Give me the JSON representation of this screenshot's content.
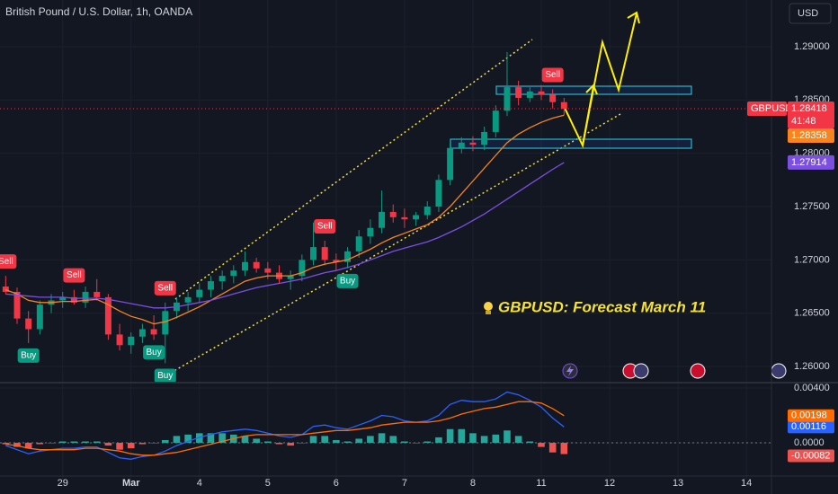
{
  "header": {
    "title": "British Pound / U.S. Dollar, 1h, OANDA",
    "currency": "USD",
    "symbol": "GBPUSD",
    "countdown": "41:48"
  },
  "annotation": "GBPUSD: Forecast March 11",
  "chart_data": [
    {
      "type": "candlestick",
      "x": [
        -5,
        -4,
        -3,
        -2,
        -1,
        0,
        1,
        2,
        3,
        4,
        5,
        6,
        7,
        8,
        9,
        10,
        11,
        12,
        13,
        14,
        15,
        16,
        17,
        18,
        19,
        20,
        21,
        22,
        23,
        24,
        25,
        26,
        27,
        28,
        29,
        30,
        31,
        32,
        33,
        34,
        35,
        36,
        37,
        38,
        39,
        40,
        41,
        42,
        43,
        44
      ],
      "open": [
        1.2675,
        1.267,
        1.2645,
        1.2635,
        1.2658,
        1.2662,
        1.2665,
        1.266,
        1.267,
        1.2665,
        1.263,
        1.262,
        1.2628,
        1.2635,
        1.263,
        1.2652,
        1.266,
        1.2665,
        1.2672,
        1.268,
        1.2685,
        1.269,
        1.2698,
        1.2692,
        1.2688,
        1.2682,
        1.2685,
        1.27,
        1.2712,
        1.27,
        1.2698,
        1.2708,
        1.2722,
        1.273,
        1.2745,
        1.274,
        1.2738,
        1.2742,
        1.275,
        1.2775,
        1.2805,
        1.281,
        1.2808,
        1.282,
        1.284,
        1.2862,
        1.2852,
        1.2858,
        1.2855,
        1.2848
      ],
      "high": [
        1.2685,
        1.2674,
        1.2652,
        1.2662,
        1.2668,
        1.267,
        1.2672,
        1.2675,
        1.2682,
        1.2668,
        1.264,
        1.2632,
        1.264,
        1.2648,
        1.266,
        1.2665,
        1.267,
        1.2678,
        1.2685,
        1.269,
        1.2695,
        1.2708,
        1.2702,
        1.2698,
        1.2695,
        1.269,
        1.2705,
        1.2735,
        1.2718,
        1.2706,
        1.2712,
        1.2728,
        1.2738,
        1.2765,
        1.2752,
        1.2748,
        1.2745,
        1.2755,
        1.278,
        1.281,
        1.2815,
        1.2816,
        1.2825,
        1.2845,
        1.2895,
        1.2868,
        1.2862,
        1.2864,
        1.286,
        1.2852
      ],
      "low": [
        1.2668,
        1.264,
        1.2622,
        1.263,
        1.265,
        1.2655,
        1.2658,
        1.2655,
        1.2662,
        1.2625,
        1.2615,
        1.2612,
        1.2622,
        1.2625,
        1.2603,
        1.2645,
        1.2652,
        1.266,
        1.2665,
        1.2672,
        1.2678,
        1.2685,
        1.2688,
        1.2682,
        1.2678,
        1.2672,
        1.268,
        1.2695,
        1.2695,
        1.269,
        1.2692,
        1.2702,
        1.2715,
        1.2725,
        1.2735,
        1.273,
        1.2732,
        1.2738,
        1.2745,
        1.277,
        1.28,
        1.2802,
        1.2803,
        1.2815,
        1.2835,
        1.2845,
        1.2848,
        1.285,
        1.2842,
        1.2836
      ],
      "close": [
        1.267,
        1.2645,
        1.2635,
        1.2658,
        1.2662,
        1.2665,
        1.266,
        1.267,
        1.2665,
        1.263,
        1.262,
        1.2628,
        1.2635,
        1.263,
        1.2652,
        1.266,
        1.2665,
        1.2672,
        1.268,
        1.2685,
        1.269,
        1.2698,
        1.2692,
        1.2688,
        1.2682,
        1.2685,
        1.27,
        1.2712,
        1.27,
        1.2698,
        1.2708,
        1.2722,
        1.273,
        1.2745,
        1.274,
        1.2738,
        1.2742,
        1.275,
        1.2775,
        1.2805,
        1.281,
        1.2808,
        1.282,
        1.284,
        1.2862,
        1.2852,
        1.2858,
        1.2855,
        1.2848,
        1.28418
      ],
      "up_color": "#089981",
      "down_color": "#f23645",
      "series": [
        {
          "color": "#f7841f",
          "values": [
            1.2672,
            1.2668,
            1.2662,
            1.266,
            1.266,
            1.2661,
            1.2661,
            1.2662,
            1.2663,
            1.2658,
            1.2652,
            1.2647,
            1.2644,
            1.264,
            1.2642,
            1.2646,
            1.2651,
            1.2656,
            1.2662,
            1.2668,
            1.2674,
            1.268,
            1.2683,
            1.2685,
            1.2685,
            1.2685,
            1.2688,
            1.2693,
            1.2696,
            1.2698,
            1.27,
            1.2705,
            1.271,
            1.2716,
            1.2721,
            1.2725,
            1.2729,
            1.2733,
            1.274,
            1.275,
            1.2762,
            1.2774,
            1.2786,
            1.2798,
            1.281,
            1.2818,
            1.2824,
            1.2829,
            1.2833,
            1.28358
          ]
        },
        {
          "color": "#7b4fe0",
          "values": [
            1.2668,
            1.2667,
            1.2666,
            1.2665,
            1.2665,
            1.2665,
            1.2664,
            1.2664,
            1.2664,
            1.2663,
            1.2661,
            1.2659,
            1.2657,
            1.2655,
            1.2655,
            1.2656,
            1.2658,
            1.266,
            1.2662,
            1.2665,
            1.2668,
            1.2671,
            1.2674,
            1.2676,
            1.2678,
            1.268,
            1.2682,
            1.2685,
            1.2688,
            1.269,
            1.2693,
            1.2696,
            1.27,
            1.2704,
            1.2708,
            1.2711,
            1.2714,
            1.2717,
            1.2721,
            1.2726,
            1.2731,
            1.2737,
            1.2743,
            1.275,
            1.2757,
            1.2764,
            1.2771,
            1.2778,
            1.2785,
            1.27914
          ]
        }
      ],
      "last_price_color": "#f23645",
      "signals": [
        {
          "label": "Sell",
          "x": -5,
          "color": "#f23645"
        },
        {
          "label": "Buy",
          "x": -3,
          "color": "#089981"
        },
        {
          "label": "Sell",
          "x": 1,
          "color": "#f23645"
        },
        {
          "label": "Sell",
          "x": 9,
          "color": "#f23645"
        },
        {
          "label": "Buy",
          "x": 8,
          "color": "#089981"
        },
        {
          "label": "Buy",
          "x": 9,
          "color": "#089981"
        },
        {
          "label": "Sell",
          "x": 23,
          "color": "#f23645"
        },
        {
          "label": "Buy",
          "x": 25,
          "color": "#089981"
        },
        {
          "label": "Sell",
          "x": 43,
          "color": "#f23645"
        }
      ],
      "xlim": [
        -5.5,
        62.2
      ],
      "xticks": [
        {
          "value": 0,
          "label": "29"
        },
        {
          "value": 6,
          "label": "Mar"
        },
        {
          "value": 12,
          "label": "4"
        },
        {
          "value": 18,
          "label": "5"
        },
        {
          "value": 24,
          "label": "6"
        },
        {
          "value": 30,
          "label": "7"
        },
        {
          "value": 36,
          "label": "8"
        },
        {
          "value": 42,
          "label": "11"
        },
        {
          "value": 48,
          "label": "12"
        },
        {
          "value": 54,
          "label": "13"
        },
        {
          "value": 60,
          "label": "14"
        }
      ],
      "ylim": [
        1.25857,
        1.29438
      ],
      "yticks": [
        {
          "value": 1.26,
          "label": "1.26000"
        },
        {
          "value": 1.265,
          "label": "1.26500"
        },
        {
          "value": 1.27,
          "label": "1.27000"
        },
        {
          "value": 1.275,
          "label": "1.27500"
        },
        {
          "value": 1.28,
          "label": "1.28000"
        },
        {
          "value": 1.285,
          "label": "1.28500"
        },
        {
          "value": 1.29,
          "label": "1.29000"
        }
      ],
      "grid": true
    },
    {
      "type": "macd",
      "x": [
        -5,
        -4,
        -3,
        -2,
        -1,
        0,
        1,
        2,
        3,
        4,
        5,
        6,
        7,
        8,
        9,
        10,
        11,
        12,
        13,
        14,
        15,
        16,
        17,
        18,
        19,
        20,
        21,
        22,
        23,
        24,
        25,
        26,
        27,
        28,
        29,
        30,
        31,
        32,
        33,
        34,
        35,
        36,
        37,
        38,
        39,
        40,
        41,
        42,
        43,
        44
      ],
      "histogram": [
        -0.0001,
        -0.0003,
        -0.0004,
        -0.0001,
        0,
        0.0001,
        0.0001,
        0.0001,
        0.0001,
        -0.0002,
        -0.0005,
        -0.0004,
        -0.0001,
        0,
        0.0002,
        0.0005,
        0.0006,
        0.0007,
        0.0007,
        0.0007,
        0.0006,
        0.0005,
        0.0003,
        0.0001,
        -0.0001,
        -0.0002,
        0,
        0.0005,
        0.0005,
        0.0002,
        0.0001,
        0.0003,
        0.0005,
        0.0007,
        0.0005,
        0.0001,
        0,
        0.0001,
        0.0004,
        0.001,
        0.001,
        0.0007,
        0.0005,
        0.0006,
        0.0009,
        0.0005,
        0.0001,
        -0.0003,
        -0.0007,
        -0.00082
      ],
      "up_color": "#26a69a",
      "down_color": "#ef5350",
      "series": [
        {
          "color": "#2962ff",
          "values": [
            -0.0002,
            -0.0005,
            -0.0008,
            -0.0006,
            -0.0005,
            -0.0004,
            -0.0004,
            -0.0003,
            -0.0003,
            -0.0007,
            -0.0011,
            -0.0012,
            -0.001,
            -0.0009,
            -0.0006,
            -0.0002,
            0.0001,
            0.0004,
            0.0006,
            0.0008,
            0.0009,
            0.001,
            0.0009,
            0.0007,
            0.0005,
            0.0004,
            0.0006,
            0.0012,
            0.0013,
            0.0011,
            0.001,
            0.0013,
            0.0016,
            0.002,
            0.0019,
            0.0016,
            0.0015,
            0.0016,
            0.002,
            0.0028,
            0.0031,
            0.003,
            0.003,
            0.0032,
            0.0037,
            0.0035,
            0.0031,
            0.0026,
            0.0018,
            0.00116
          ]
        },
        {
          "color": "#ff6d00",
          "values": [
            -0.0001,
            -0.0002,
            -0.0004,
            -0.0005,
            -0.0005,
            -0.0005,
            -0.0005,
            -0.0004,
            -0.0004,
            -0.0005,
            -0.0006,
            -0.0008,
            -0.0009,
            -0.0009,
            -0.0008,
            -0.0007,
            -0.0005,
            -0.0003,
            -0.0001,
            0.0001,
            0.0003,
            0.0005,
            0.0006,
            0.0006,
            0.0006,
            0.0006,
            0.0006,
            0.0007,
            0.0008,
            0.0009,
            0.0009,
            0.001,
            0.0011,
            0.0013,
            0.0014,
            0.0015,
            0.0015,
            0.0015,
            0.0016,
            0.0018,
            0.0021,
            0.0023,
            0.0025,
            0.0026,
            0.0028,
            0.003,
            0.003,
            0.0029,
            0.0025,
            0.00198
          ]
        }
      ],
      "xlim": [
        -5.5,
        62.2
      ],
      "ylim": [
        -0.00275,
        0.00426
      ],
      "yticks": [
        {
          "value": 0,
          "label": "0.0000"
        },
        {
          "value": 0.004,
          "label": "0.00400"
        }
      ],
      "grid": true
    }
  ]
}
